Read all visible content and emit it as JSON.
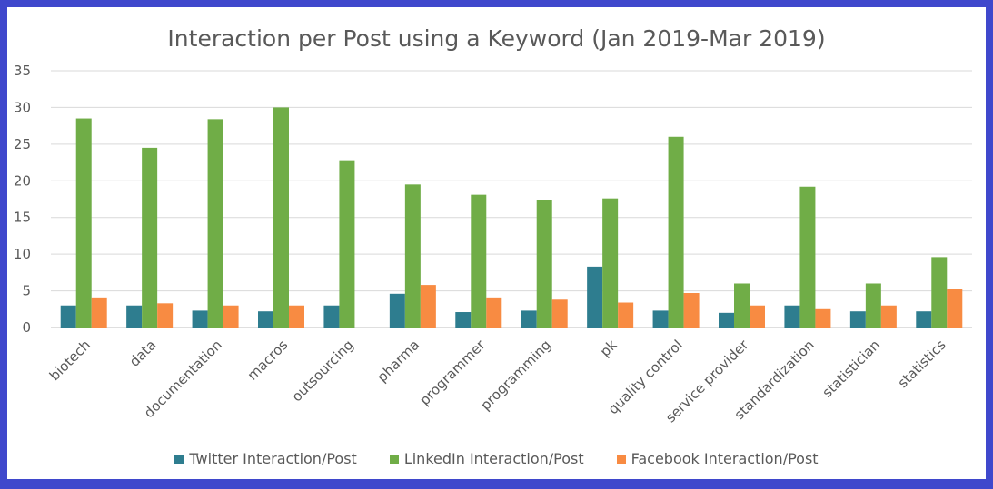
{
  "chart_data": {
    "type": "bar",
    "title": "Interaction per Post using a Keyword (Jan 2019-Mar 2019)",
    "categories": [
      "biotech",
      "data",
      "documentation",
      "macros",
      "outsourcing",
      "pharma",
      "programmer",
      "programming",
      "pk",
      "quality control",
      "service provider",
      "standardization",
      "statistician",
      "statistics"
    ],
    "ylim": [
      0,
      35
    ],
    "yticks": [
      0,
      5,
      10,
      15,
      20,
      25,
      30,
      35
    ],
    "grid": true,
    "legend_position": "bottom",
    "series": [
      {
        "name": "Twitter Interaction/Post",
        "color": "#2e7d8f",
        "values": [
          3.0,
          3.0,
          2.3,
          2.2,
          3.0,
          4.6,
          2.1,
          2.3,
          8.3,
          2.3,
          2.0,
          3.0,
          2.2,
          2.2
        ]
      },
      {
        "name": "LinkedIn Interaction/Post",
        "color": "#70ad47",
        "values": [
          28.5,
          24.5,
          28.4,
          30.0,
          22.8,
          19.5,
          18.1,
          17.4,
          17.6,
          26.0,
          6.0,
          19.2,
          6.0,
          9.6
        ]
      },
      {
        "name": "Facebook Interaction/Post",
        "color": "#f88b42",
        "values": [
          4.1,
          3.3,
          3.0,
          3.0,
          0,
          5.8,
          4.1,
          3.8,
          3.4,
          4.7,
          3.0,
          2.5,
          3.0,
          5.3
        ]
      }
    ]
  }
}
